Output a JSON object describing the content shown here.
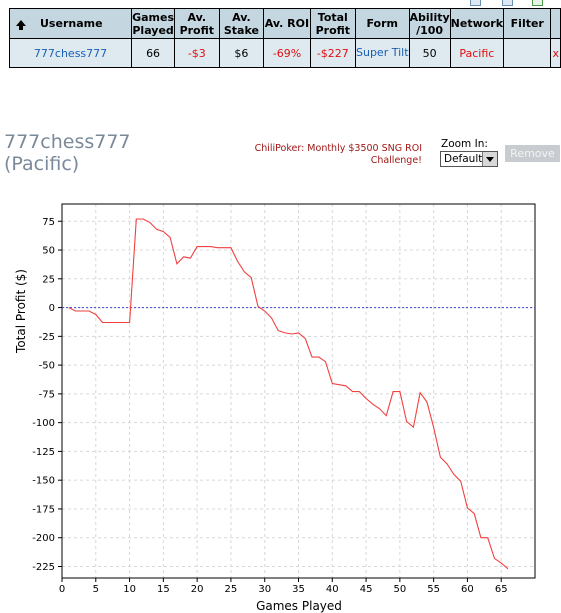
{
  "table": {
    "headers": [
      "Username",
      "Games Played",
      "Av. Profit",
      "Av. Stake",
      "Av. ROI",
      "Total Profit",
      "Form",
      "Ability /100",
      "Network",
      "Filter",
      ""
    ],
    "row": {
      "username": "777chess777",
      "games_played": "66",
      "av_profit": "-$3",
      "av_stake": "$6",
      "av_roi": "-69%",
      "total_profit": "-$227",
      "form": "Super Tilt",
      "ability": "50",
      "network": "Pacific",
      "filter": "",
      "remove": "x"
    }
  },
  "player": {
    "name": "777chess777",
    "network": "(Pacific)"
  },
  "promo": "ChiliPoker: Monthly $3500 SNG ROI Challenge!",
  "zoom": {
    "label": "Zoom In:",
    "value": "Default"
  },
  "remove_button": "Remove",
  "colors": {
    "header_bg": "#c4d6e0",
    "row_bg": "#deeaf0",
    "negative": "#e01010",
    "line": "#f04040",
    "zero_line": "#4444cc"
  },
  "chart_data": {
    "type": "line",
    "xlabel": "Games Played",
    "ylabel": "Total Profit ($)",
    "xlim": [
      0,
      70
    ],
    "ylim": [
      -235,
      90
    ],
    "xticks": [
      0,
      5,
      10,
      15,
      20,
      25,
      30,
      35,
      40,
      45,
      50,
      55,
      60,
      65
    ],
    "yticks": [
      75,
      50,
      25,
      0,
      -25,
      -50,
      -75,
      -100,
      -125,
      -150,
      -175,
      -200,
      -225
    ],
    "grid": true,
    "series": [
      {
        "x": [
          1,
          2,
          3,
          4,
          5,
          6,
          7,
          8,
          9,
          10,
          11,
          12,
          13,
          14,
          15,
          16,
          17,
          18,
          19,
          20,
          21,
          22,
          23,
          24,
          25,
          26,
          27,
          28,
          29,
          30,
          31,
          32,
          33,
          34,
          35,
          36,
          37,
          38,
          39,
          40,
          41,
          42,
          43,
          44,
          45,
          46,
          47,
          48,
          49,
          50,
          51,
          52,
          53,
          54,
          55,
          56,
          57,
          58,
          59,
          60,
          61,
          62,
          63,
          64,
          65,
          66
        ],
        "y": [
          0,
          -3,
          -3,
          -3,
          -6,
          -13,
          -13,
          -13,
          -13,
          -13,
          77,
          77,
          74,
          68,
          66,
          61,
          38,
          44,
          43,
          53,
          53,
          53,
          52,
          52,
          52,
          40,
          31,
          26,
          1,
          -3,
          -9,
          -20,
          -22,
          -23,
          -22,
          -27,
          -43,
          -43,
          -47,
          -66,
          -67,
          -68,
          -73,
          -73,
          -79,
          -84,
          -88,
          -94,
          -73,
          -73,
          -99,
          -104,
          -74,
          -82,
          -104,
          -130,
          -136,
          -145,
          -151,
          -174,
          -179,
          -200,
          -200,
          -218,
          -222,
          -227
        ]
      }
    ]
  }
}
